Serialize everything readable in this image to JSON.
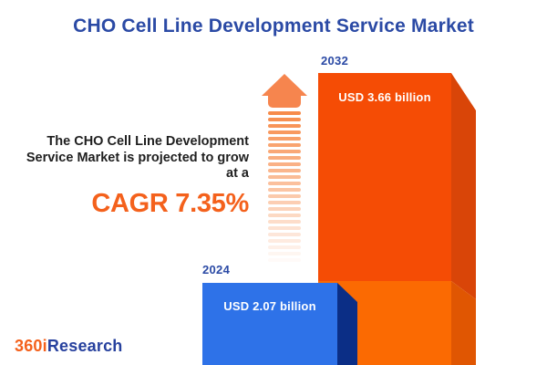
{
  "title": "CHO Cell Line Development Service Market",
  "summary": {
    "line1": "The CHO Cell Line Development",
    "line2": "Service Market is projected to grow",
    "line3": "at a",
    "cagr": "CAGR 7.35%"
  },
  "chart_data": {
    "type": "bar",
    "title": "CHO Cell Line Development Service Market",
    "categories": [
      "2024",
      "2032"
    ],
    "values": [
      2.07,
      3.66
    ],
    "unit": "USD billion",
    "value_labels": [
      "USD 2.07 billion",
      "USD 3.66 billion"
    ],
    "cagr_percent": 7.35,
    "legend": "none",
    "grid": false,
    "bar_colors": {
      "2024": "#2E72E8",
      "2032": "#F54C05"
    }
  },
  "bars": [
    {
      "year": "2024",
      "label": "USD 2.07 billion"
    },
    {
      "year": "2032",
      "label": "USD 3.66 billion"
    }
  ],
  "logo": {
    "part1": "360i",
    "part2": "Research"
  },
  "icons": {
    "growth_arrow": "up-arrow-striped"
  },
  "colors": {
    "title_blue": "#2B4AA5",
    "body_text": "#1F1F1F",
    "accent_orange": "#F4611C",
    "arrow_orange": "#F6854E",
    "bar_2024_front": "#2E72E8",
    "bar_2024_side": "#0B2E86",
    "bar_2032_front_upper": "#F54C05",
    "bar_2032_front_lower": "#FB6A02",
    "bar_2032_side_upper": "#D94508",
    "bar_2032_side_lower": "#E05602"
  }
}
